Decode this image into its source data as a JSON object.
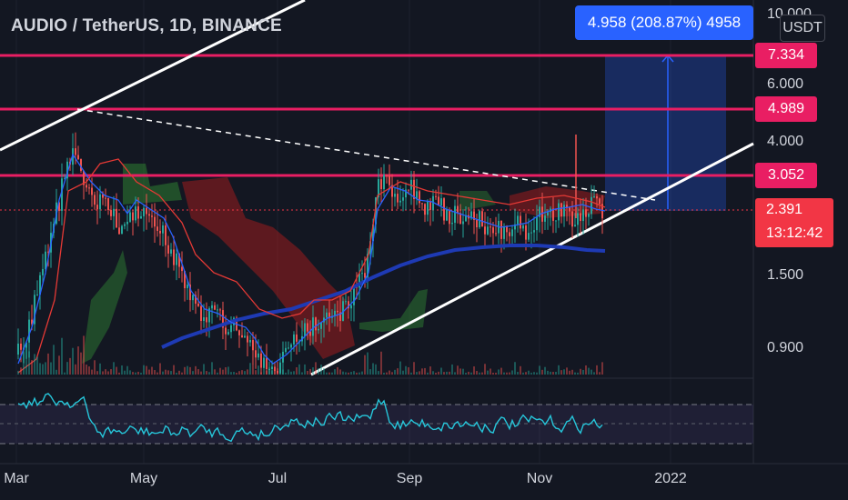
{
  "header": {
    "symbol_title": "AUDIO / TetherUS, 1D, BINANCE",
    "currency_button": "USDT"
  },
  "measure_tool": {
    "label": "4.958 (208.87%) 4958"
  },
  "price_axis": {
    "ticks": [
      "10.000",
      "6.000",
      "4.000",
      "1.500",
      "0.900"
    ],
    "level_badges": [
      {
        "label": "7.334",
        "color": "#e91e63"
      },
      {
        "label": "4.989",
        "color": "#e91e63"
      },
      {
        "label": "3.052",
        "color": "#e91e63"
      }
    ],
    "current_price": "2.391",
    "countdown": "13:12:42",
    "current_color": "#f23645"
  },
  "time_axis": {
    "labels": [
      "Mar",
      "May",
      "Jul",
      "Sep",
      "Nov",
      "2022"
    ]
  },
  "colors": {
    "background": "#131722",
    "level_line": "#e91e63",
    "measure": "#2962ff",
    "trendline": "#ffffff",
    "ma_blue": "#1e3ab4",
    "rsi": "#26c6da"
  }
}
